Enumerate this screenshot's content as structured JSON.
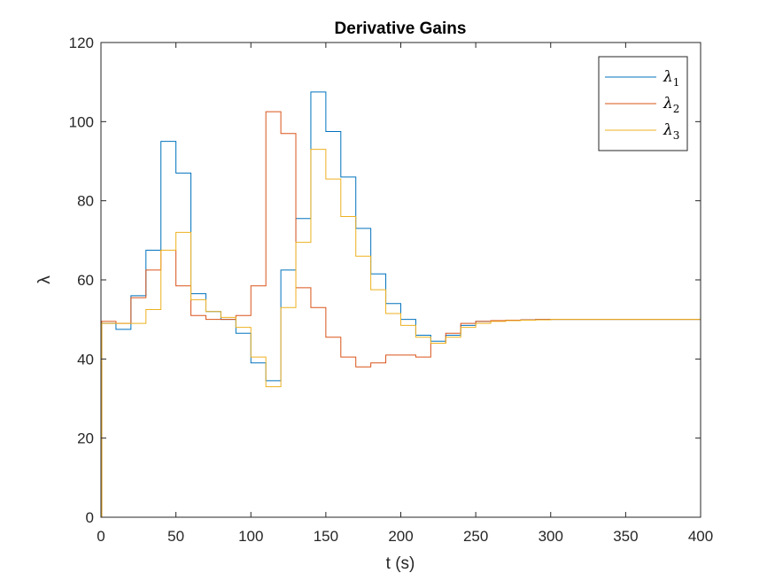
{
  "chart_data": {
    "type": "line",
    "title": "Derivative Gains",
    "xlabel": "t (s)",
    "ylabel": "λ",
    "xlim": [
      0,
      400
    ],
    "ylim": [
      0,
      120
    ],
    "xticks": [
      0,
      50,
      100,
      150,
      200,
      250,
      300,
      350,
      400
    ],
    "yticks": [
      0,
      20,
      40,
      60,
      80,
      100,
      120
    ],
    "grid": false,
    "legend_position": "top-right",
    "step_style": "stairs",
    "series": [
      {
        "name": "λ1",
        "legend_symbol": "λ",
        "legend_subscript": "1",
        "color": "#0072BD",
        "x": [
          0,
          0.5,
          10,
          20,
          30,
          40,
          50,
          60,
          70,
          80,
          90,
          100,
          110,
          120,
          130,
          140,
          150,
          160,
          170,
          180,
          190,
          200,
          210,
          220,
          230,
          240,
          250,
          260,
          270,
          280,
          290,
          300,
          320,
          340,
          360,
          380,
          400
        ],
        "y": [
          0,
          49,
          47.5,
          56,
          67.5,
          95,
          87,
          56.5,
          52,
          50,
          46.5,
          39,
          34.5,
          62.5,
          75.5,
          107.5,
          97.5,
          86,
          73,
          61.5,
          54,
          50,
          46,
          44.5,
          46,
          48.5,
          49.5,
          49.7,
          49.8,
          49.9,
          50,
          50,
          50,
          50,
          50,
          50,
          50
        ]
      },
      {
        "name": "λ2",
        "legend_symbol": "λ",
        "legend_subscript": "2",
        "color": "#D95319",
        "x": [
          0,
          0.5,
          10,
          20,
          30,
          40,
          50,
          60,
          70,
          80,
          90,
          100,
          110,
          120,
          130,
          140,
          150,
          160,
          170,
          180,
          190,
          200,
          210,
          220,
          230,
          240,
          250,
          260,
          270,
          280,
          290,
          300,
          320,
          340,
          360,
          380,
          400
        ],
        "y": [
          0,
          49.5,
          49,
          55.5,
          62.5,
          67.5,
          58.5,
          51,
          50,
          50,
          51,
          58.5,
          102.5,
          97,
          58,
          53,
          45.5,
          40.5,
          38,
          39,
          41,
          41,
          40.5,
          44,
          46.5,
          49,
          49.5,
          49.7,
          49.8,
          49.9,
          50,
          50,
          50,
          50,
          50,
          50,
          50
        ]
      },
      {
        "name": "λ3",
        "legend_symbol": "λ",
        "legend_subscript": "3",
        "color": "#EDB120",
        "x": [
          0,
          0.5,
          10,
          20,
          30,
          40,
          50,
          60,
          70,
          80,
          90,
          100,
          110,
          120,
          130,
          140,
          150,
          160,
          170,
          180,
          190,
          200,
          210,
          220,
          230,
          240,
          250,
          260,
          270,
          280,
          290,
          300,
          320,
          340,
          360,
          380,
          400
        ],
        "y": [
          0,
          49,
          49,
          49,
          52.5,
          67.5,
          72,
          55,
          52,
          50.5,
          48,
          40.5,
          33,
          53,
          69.5,
          93,
          85.5,
          76,
          66,
          57.5,
          51.5,
          48.5,
          45.5,
          44,
          45.5,
          48,
          49,
          49.5,
          49.7,
          49.8,
          49.9,
          50,
          50,
          50,
          50,
          50,
          50
        ]
      }
    ]
  }
}
